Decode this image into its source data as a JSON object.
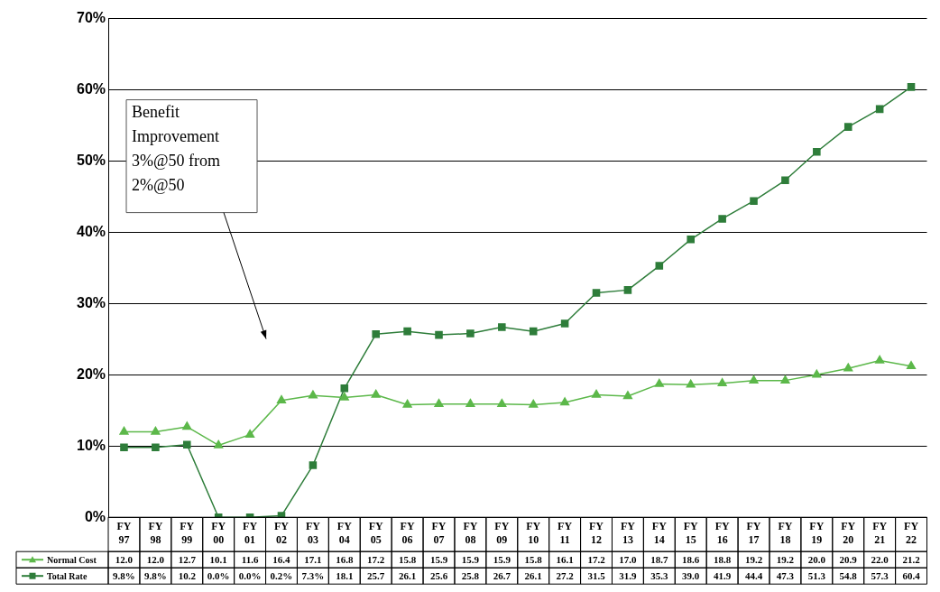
{
  "chart_data": {
    "type": "line",
    "categories": [
      "FY 97",
      "FY 98",
      "FY 99",
      "FY 00",
      "FY 01",
      "FY 02",
      "FY 03",
      "FY 04",
      "FY 05",
      "FY 06",
      "FY 07",
      "FY 08",
      "FY 09",
      "FY 10",
      "FY 11",
      "FY 12",
      "FY 13",
      "FY 14",
      "FY 15",
      "FY 16",
      "FY 17",
      "FY 18",
      "FY 19",
      "FY 20",
      "FY 21",
      "FY 22"
    ],
    "series": [
      {
        "name": "Normal Cost",
        "color": "#5cb84a",
        "marker": "triangle",
        "values": [
          12.0,
          12.0,
          12.7,
          10.1,
          11.6,
          16.4,
          17.1,
          16.8,
          17.2,
          15.8,
          15.9,
          15.9,
          15.9,
          15.8,
          16.1,
          17.2,
          17.0,
          18.7,
          18.6,
          18.8,
          19.2,
          19.2,
          20.0,
          20.9,
          22.0,
          21.2
        ],
        "value_labels": [
          "12.0",
          "12.0",
          "12.7",
          "10.1",
          "11.6",
          "16.4",
          "17.1",
          "16.8",
          "17.2",
          "15.8",
          "15.9",
          "15.9",
          "15.9",
          "15.8",
          "16.1",
          "17.2",
          "17.0",
          "18.7",
          "18.6",
          "18.8",
          "19.2",
          "19.2",
          "20.0",
          "20.9",
          "22.0",
          "21.2"
        ]
      },
      {
        "name": "Total Rate",
        "color": "#2e7d3a",
        "marker": "square",
        "values": [
          9.8,
          9.8,
          10.2,
          0.0,
          0.0,
          0.2,
          7.3,
          18.1,
          25.7,
          26.1,
          25.6,
          25.8,
          26.7,
          26.1,
          27.2,
          31.5,
          31.9,
          35.3,
          39.0,
          41.9,
          44.4,
          47.3,
          51.3,
          54.8,
          57.3,
          60.4
        ],
        "value_labels": [
          "9.8%",
          "9.8%",
          "10.2",
          "0.0%",
          "0.0%",
          "0.2%",
          "7.3%",
          "18.1",
          "25.7",
          "26.1",
          "25.6",
          "25.8",
          "26.7",
          "26.1",
          "27.2",
          "31.5",
          "31.9",
          "35.3",
          "39.0",
          "41.9",
          "44.4",
          "47.3",
          "51.3",
          "54.8",
          "57.3",
          "60.4"
        ]
      }
    ],
    "ylim": [
      0,
      70
    ],
    "yticks": [
      {
        "value": 0,
        "label": "0%"
      },
      {
        "value": 10,
        "label": "10%"
      },
      {
        "value": 20,
        "label": "20%"
      },
      {
        "value": 30,
        "label": "30%"
      },
      {
        "value": 40,
        "label": "40%"
      },
      {
        "value": 50,
        "label": "50%"
      },
      {
        "value": 60,
        "label": "60%"
      },
      {
        "value": 70,
        "label": "70%"
      }
    ],
    "grid": "y",
    "legend": "bottom",
    "annotations": [
      "Benefit Improvement 3%@50 from 2%@50"
    ]
  }
}
